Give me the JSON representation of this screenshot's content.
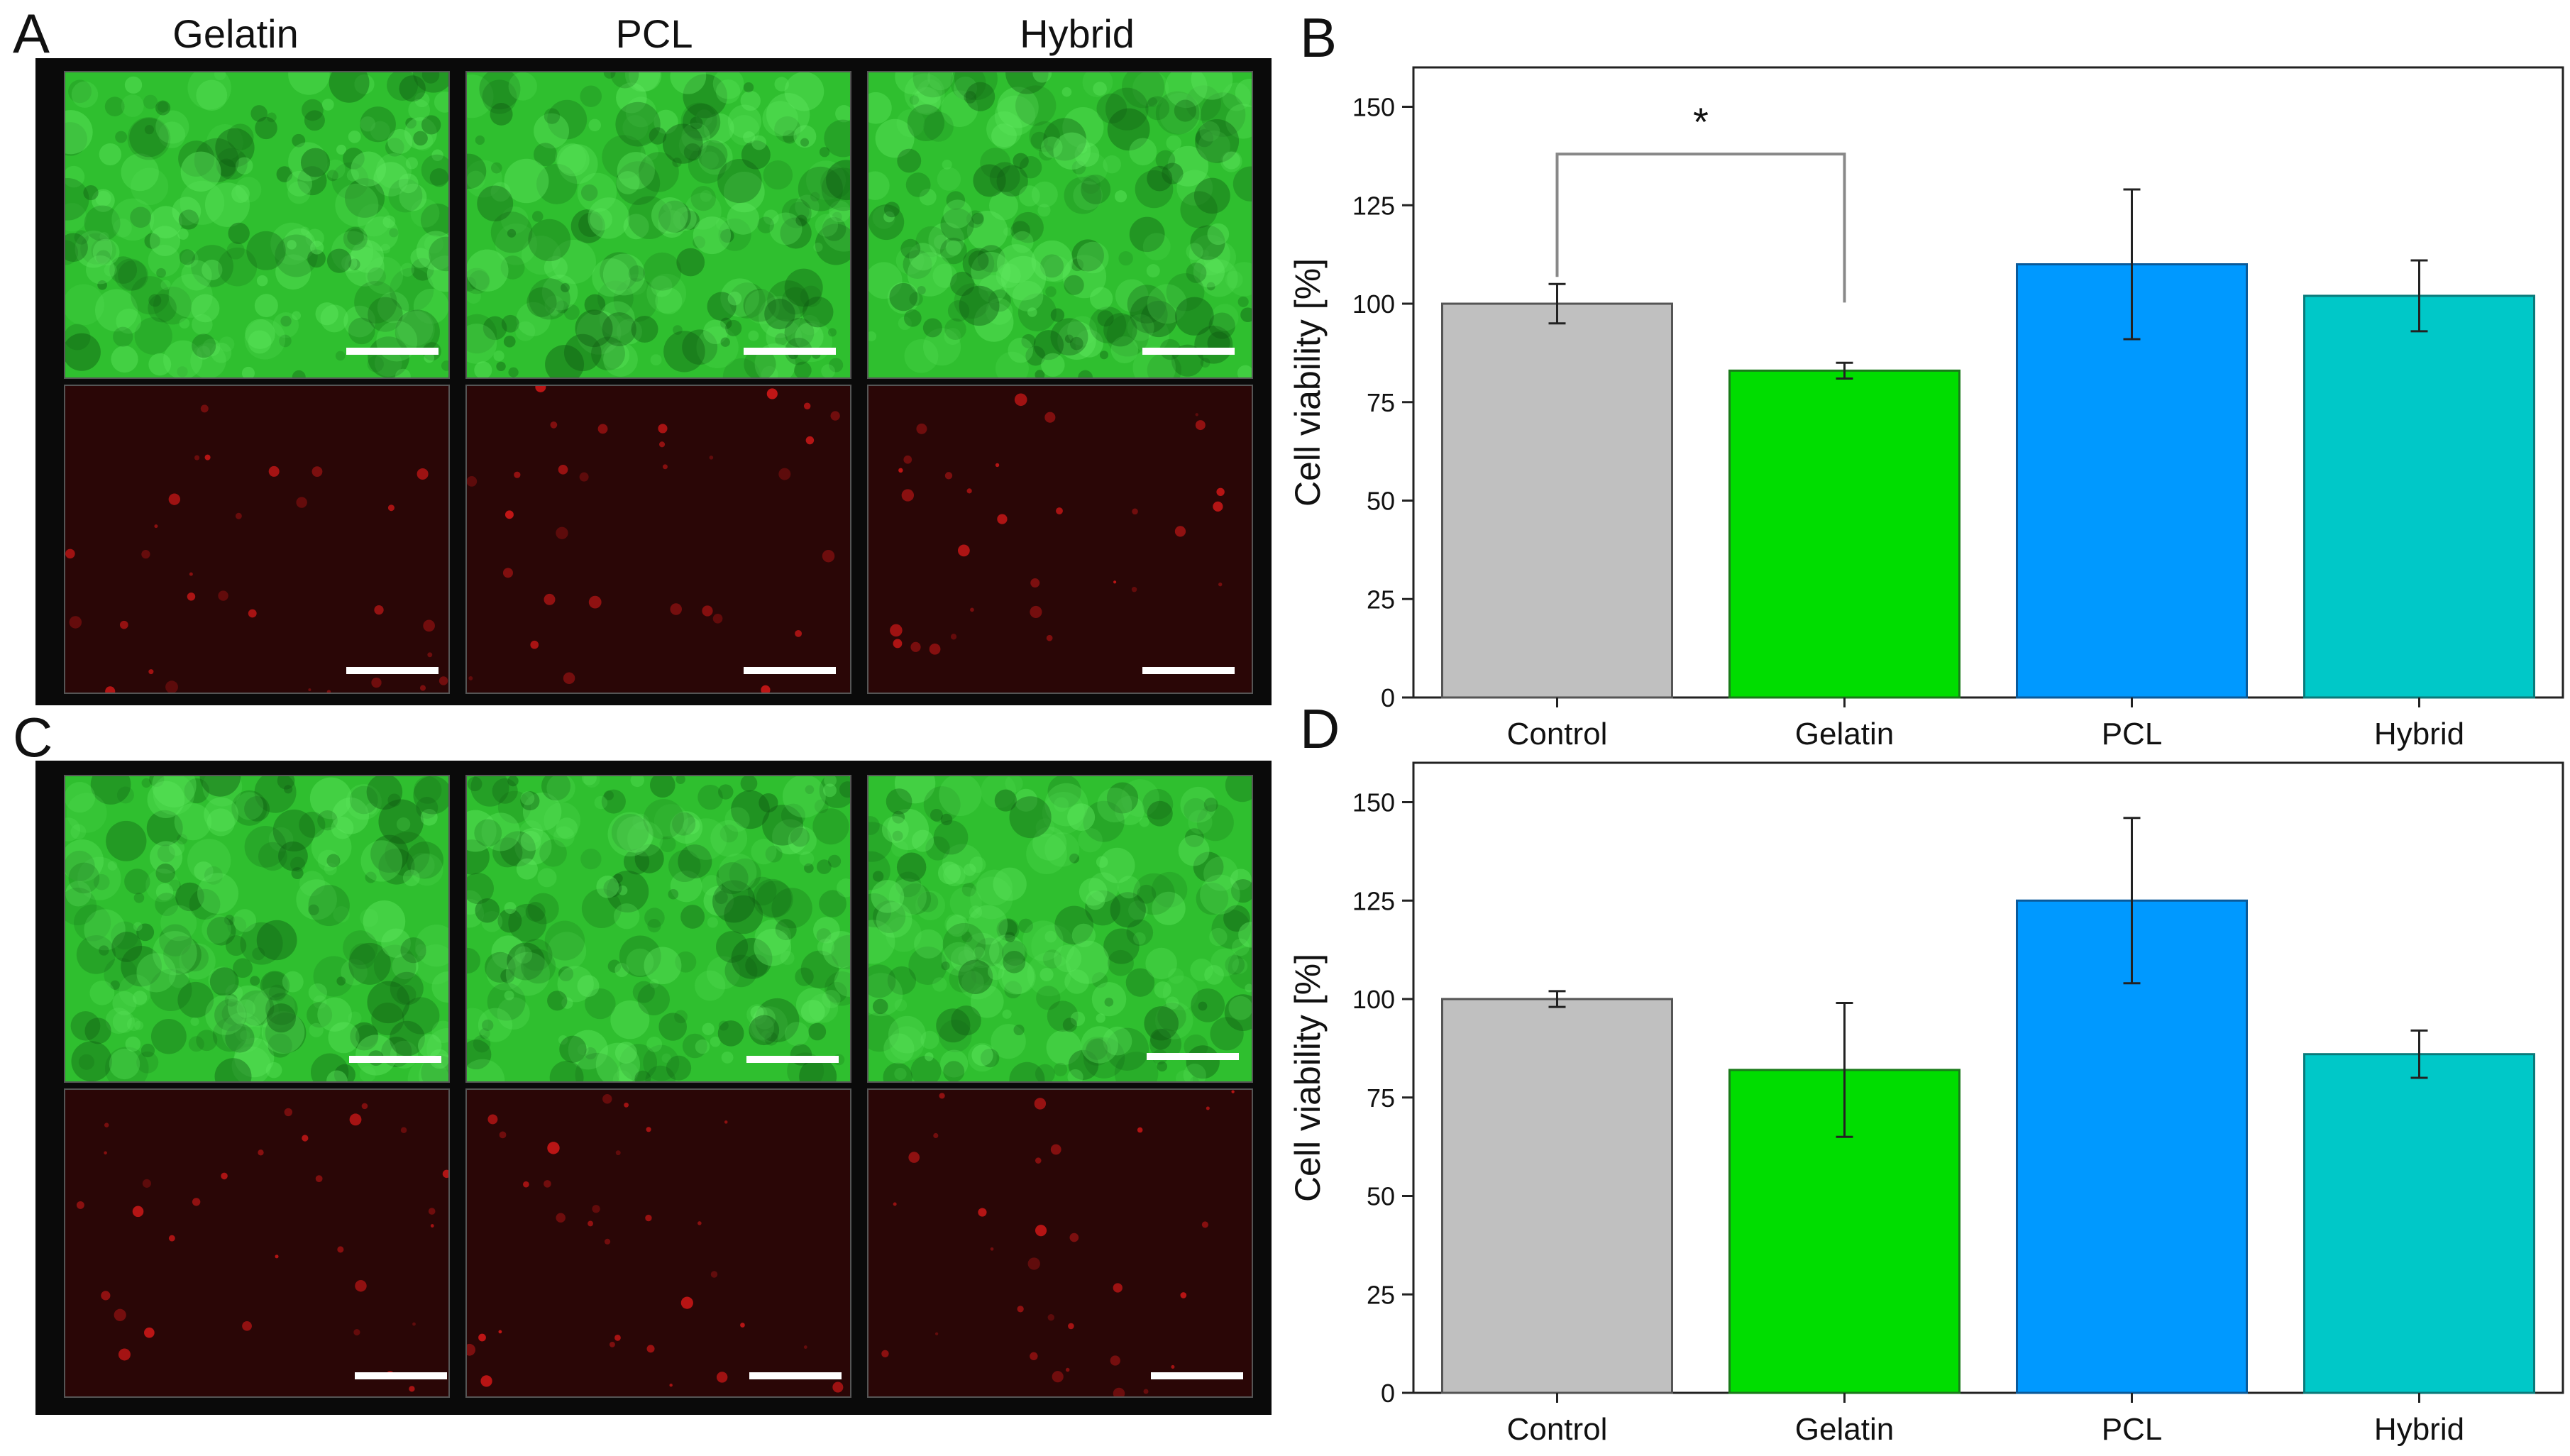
{
  "figure": {
    "panels": {
      "A": "A",
      "B": "B",
      "C": "C",
      "D": "D"
    },
    "micrograph_headers": [
      "Gelatin",
      "PCL",
      "Hybrid"
    ]
  },
  "colors": {
    "control": "#c0c0c0",
    "gelatin": "#00dd00",
    "pcl": "#0099ff",
    "hybrid": "#00c8c8",
    "live_stain": "#2fbf2f",
    "dead_stain": "#2a0606"
  },
  "chart_data": [
    {
      "panel": "B",
      "type": "bar",
      "categories": [
        "Control",
        "Gelatin",
        "PCL",
        "Hybrid"
      ],
      "values": [
        100,
        83,
        110,
        102
      ],
      "errors": [
        5,
        2,
        19,
        9
      ],
      "ylabel": "Cell viability [%]",
      "xlabel": "",
      "ylim": [
        0,
        160
      ],
      "yticks": [
        0,
        25,
        50,
        75,
        100,
        125,
        150
      ],
      "significance": {
        "from": "Control",
        "to": "Gelatin",
        "label": "*"
      },
      "grid": false
    },
    {
      "panel": "D",
      "type": "bar",
      "categories": [
        "Control",
        "Gelatin",
        "PCL",
        "Hybrid"
      ],
      "values": [
        100,
        82,
        125,
        86
      ],
      "errors": [
        2,
        17,
        21,
        6
      ],
      "ylabel": "Cell viability [%]",
      "xlabel": "",
      "ylim": [
        0,
        160
      ],
      "yticks": [
        0,
        25,
        50,
        75,
        100,
        125,
        150
      ],
      "grid": false
    }
  ]
}
